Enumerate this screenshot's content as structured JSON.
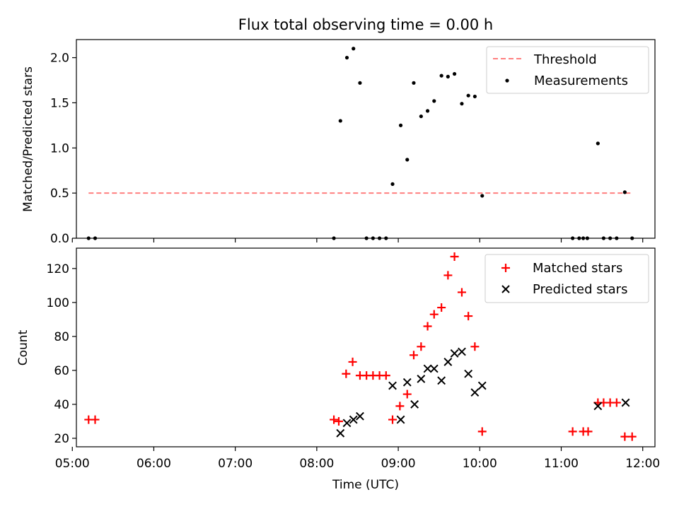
{
  "chart_data": [
    {
      "type": "scatter",
      "title": "Flux total observing time = 0.00 h",
      "xlabel": "",
      "ylabel": "Matched/Predicted stars",
      "ylim": [
        0,
        2.2
      ],
      "yticks": [
        0,
        0.5,
        1.0,
        1.5,
        2.0
      ],
      "ytick_labels": [
        "0.0",
        "0.5",
        "1.0",
        "1.5",
        "2.0"
      ],
      "xlim_hours": [
        5.05,
        12.15
      ],
      "xticks_hours": [
        5,
        6,
        7,
        8,
        9,
        10,
        11,
        12
      ],
      "threshold": {
        "name": "Threshold",
        "value": 0.5,
        "x_start": 5.2,
        "x_end": 11.87,
        "color": "#ff7f7f"
      },
      "series": [
        {
          "name": "Measurements",
          "color": "#000000",
          "marker": "dot",
          "x": [
            5.2,
            5.28,
            8.21,
            8.29,
            8.37,
            8.45,
            8.53,
            8.61,
            8.69,
            8.77,
            8.85,
            8.93,
            9.03,
            9.11,
            9.19,
            9.28,
            9.36,
            9.44,
            9.53,
            9.61,
            9.69,
            9.78,
            9.86,
            9.94,
            10.03,
            11.14,
            11.22,
            11.27,
            11.32,
            11.45,
            11.52,
            11.6,
            11.68,
            11.78,
            11.87
          ],
          "y": [
            0,
            0,
            0,
            1.3,
            2.0,
            2.1,
            1.72,
            0,
            0,
            0,
            0,
            0.6,
            1.25,
            0.87,
            1.72,
            1.35,
            1.41,
            1.52,
            1.8,
            1.79,
            1.82,
            1.49,
            1.58,
            1.57,
            0.47,
            0,
            0,
            0,
            0,
            1.05,
            0,
            0,
            0,
            0.51,
            0
          ]
        }
      ],
      "legend": {
        "location": "top-right",
        "entries": [
          "Threshold",
          "Measurements"
        ]
      }
    },
    {
      "type": "scatter",
      "title": "",
      "xlabel": "Time (UTC)",
      "ylabel": "Count",
      "ylim": [
        15,
        132
      ],
      "yticks": [
        20,
        40,
        60,
        80,
        100,
        120
      ],
      "ytick_labels": [
        "20",
        "40",
        "60",
        "80",
        "100",
        "120"
      ],
      "xlim_hours": [
        5.05,
        12.15
      ],
      "xticks_hours": [
        5,
        6,
        7,
        8,
        9,
        10,
        11,
        12
      ],
      "xtick_labels": [
        "05:00",
        "06:00",
        "07:00",
        "08:00",
        "09:00",
        "10:00",
        "11:00",
        "12:00"
      ],
      "series": [
        {
          "name": "Matched stars",
          "color": "#ff0000",
          "marker": "plus",
          "x": [
            5.2,
            5.28,
            8.21,
            8.27,
            8.36,
            8.44,
            8.53,
            8.61,
            8.69,
            8.77,
            8.85,
            8.93,
            9.02,
            9.11,
            9.19,
            9.28,
            9.36,
            9.44,
            9.53,
            9.61,
            9.69,
            9.78,
            9.86,
            9.94,
            10.03,
            11.14,
            11.27,
            11.33,
            11.45,
            11.52,
            11.6,
            11.68,
            11.78,
            11.87
          ],
          "y": [
            31,
            31,
            31,
            30,
            58,
            65,
            57,
            57,
            57,
            57,
            57,
            31,
            39,
            46,
            69,
            74,
            86,
            93,
            97,
            116,
            127,
            106,
            92,
            74,
            24,
            24,
            24,
            24,
            41,
            41,
            41,
            41,
            21,
            21
          ]
        },
        {
          "name": "Predicted stars",
          "color": "#000000",
          "marker": "x",
          "x": [
            8.29,
            8.37,
            8.45,
            8.53,
            8.93,
            9.03,
            9.11,
            9.2,
            9.28,
            9.36,
            9.44,
            9.53,
            9.61,
            9.69,
            9.78,
            9.86,
            9.94,
            10.03,
            11.45,
            11.79
          ],
          "y": [
            23,
            29,
            31,
            33,
            51,
            31,
            53,
            40,
            55,
            61,
            61,
            54,
            65,
            70,
            71,
            58,
            47,
            51,
            39,
            41
          ]
        }
      ],
      "legend": {
        "location": "top-right",
        "entries": [
          "Matched stars",
          "Predicted stars"
        ]
      }
    }
  ]
}
